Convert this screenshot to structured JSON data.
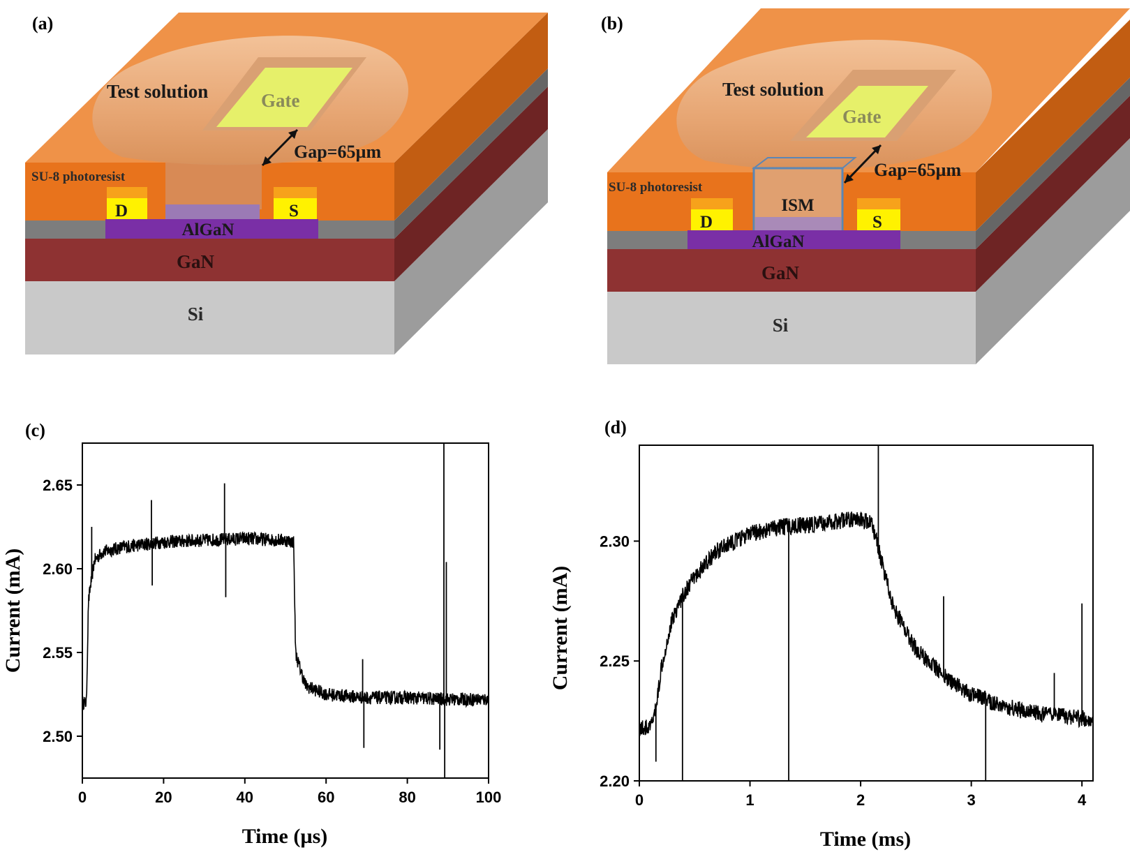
{
  "panels": {
    "a": {
      "label": "(a)",
      "texts": {
        "solution": "Test solution",
        "gate": "Gate",
        "gap": "Gap=65µm",
        "su8": "SU-8 photoresist",
        "drain": "D",
        "source": "S",
        "algan": "AlGaN",
        "gan": "GaN",
        "si": "Si"
      }
    },
    "b": {
      "label": "(b)",
      "texts": {
        "solution": "Test solution",
        "gate": "Gate",
        "gap": "Gap=65µm",
        "su8": "SU-8 photoresist",
        "ism": "ISM",
        "drain": "D",
        "source": "S",
        "algan": "AlGaN",
        "gan": "GaN",
        "si": "Si"
      }
    }
  },
  "colors": {
    "su8": "#e8731c",
    "su8_top": "#ef9248",
    "su8_side": "#c25d12",
    "droplet": "#e7b088",
    "gate": "#e6f06a",
    "contact_top": "#f7a21b",
    "contact": "#fff200",
    "algan": "#7a2fa6",
    "gray_layer": "#7d7d7d",
    "gan": "#8e3232",
    "gan_side": "#6e2424",
    "si": "#c9c9c9",
    "si_side": "#9c9c9c",
    "ism_box": "#5b86b5",
    "trace": "#000000"
  },
  "chart_data": [
    {
      "panel": "(c)",
      "type": "line",
      "xlabel": "Time (µs)",
      "ylabel": "Current (mA)",
      "xlim": [
        0,
        100
      ],
      "ylim": [
        2.475,
        2.675
      ],
      "xticks": [
        0,
        20,
        40,
        60,
        80,
        100
      ],
      "xtick_labels": [
        "0",
        "20",
        "40",
        "60",
        "80",
        "100"
      ],
      "yticks": [
        2.5,
        2.55,
        2.6,
        2.65
      ],
      "ytick_labels": [
        "2.50",
        "2.55",
        "2.60",
        "2.65"
      ],
      "series": [
        {
          "name": "current",
          "x": [
            0,
            1,
            1.5,
            2,
            3,
            5,
            10,
            20,
            30,
            40,
            50,
            52,
            52.5,
            53,
            55,
            60,
            70,
            80,
            90,
            100
          ],
          "y": [
            2.52,
            2.52,
            2.58,
            2.59,
            2.605,
            2.61,
            2.613,
            2.616,
            2.617,
            2.618,
            2.617,
            2.616,
            2.55,
            2.545,
            2.53,
            2.525,
            2.523,
            2.523,
            2.522,
            2.522
          ],
          "noise": 0.004
        }
      ],
      "spikes": [
        {
          "x": 2.3,
          "y": 2.625
        },
        {
          "x": 17,
          "y": 2.641
        },
        {
          "x": 17.2,
          "y": 2.59
        },
        {
          "x": 35,
          "y": 2.651
        },
        {
          "x": 35.3,
          "y": 2.583
        },
        {
          "x": 69,
          "y": 2.546
        },
        {
          "x": 69.3,
          "y": 2.493
        },
        {
          "x": 88,
          "y": 2.492
        },
        {
          "x": 89,
          "y": 2.675
        },
        {
          "x": 89.2,
          "y": 2.475
        },
        {
          "x": 89.6,
          "y": 2.604
        }
      ]
    },
    {
      "panel": "(d)",
      "type": "line",
      "xlabel": "Time (ms)",
      "ylabel": "Current (mA)",
      "xlim": [
        0,
        4.1
      ],
      "ylim": [
        2.2,
        2.34
      ],
      "xticks": [
        0,
        1,
        2,
        3,
        4
      ],
      "xtick_labels": [
        "0",
        "1",
        "2",
        "3",
        "4"
      ],
      "yticks": [
        2.2,
        2.25,
        2.3
      ],
      "ytick_labels": [
        "2.20",
        "2.25",
        "2.30"
      ],
      "series": [
        {
          "name": "current",
          "x": [
            0,
            0.1,
            0.15,
            0.2,
            0.3,
            0.4,
            0.5,
            0.7,
            1.0,
            1.3,
            1.6,
            1.9,
            2.1,
            2.2,
            2.3,
            2.5,
            2.8,
            3.0,
            3.3,
            3.6,
            4.0,
            4.1
          ],
          "y": [
            2.222,
            2.222,
            2.23,
            2.248,
            2.268,
            2.278,
            2.285,
            2.296,
            2.303,
            2.306,
            2.307,
            2.309,
            2.308,
            2.29,
            2.272,
            2.255,
            2.242,
            2.236,
            2.231,
            2.228,
            2.226,
            2.226
          ],
          "noise": 0.0035
        }
      ],
      "spikes": [
        {
          "x": 0.15,
          "y": 2.208
        },
        {
          "x": 0.39,
          "y": 2.2
        },
        {
          "x": 1.35,
          "y": 2.2
        },
        {
          "x": 2.16,
          "y": 2.34
        },
        {
          "x": 2.75,
          "y": 2.277
        },
        {
          "x": 3.13,
          "y": 2.2
        },
        {
          "x": 3.75,
          "y": 2.245
        },
        {
          "x": 4.0,
          "y": 2.274
        }
      ]
    }
  ]
}
